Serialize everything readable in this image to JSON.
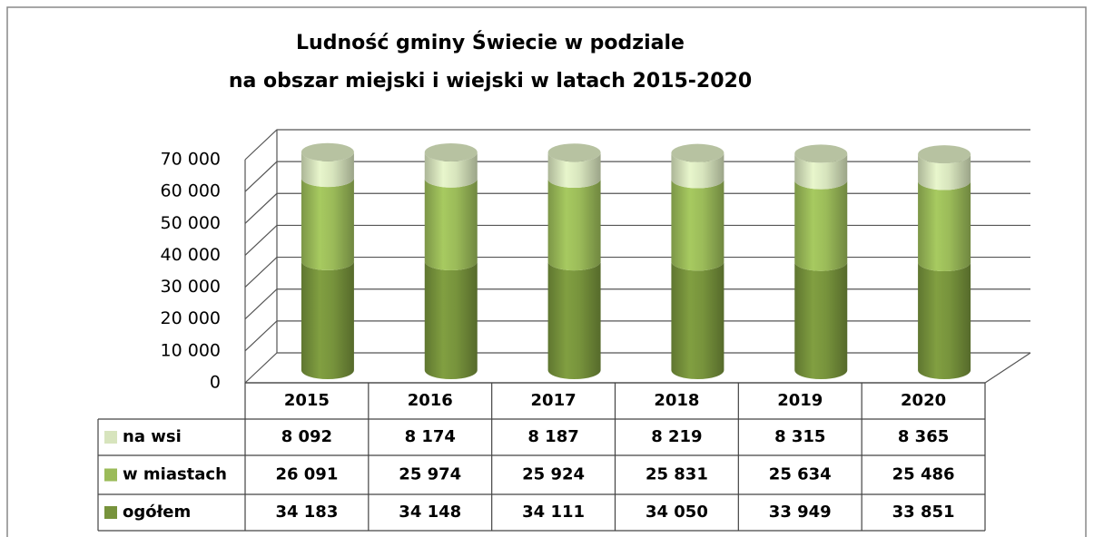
{
  "chart_data": {
    "type": "bar3d_stacked",
    "title": [
      "Ludność gminy Świecie w podziale",
      "na obszar miejski i wiejski w latach 2015-2020"
    ],
    "categories": [
      "2015",
      "2016",
      "2017",
      "2018",
      "2019",
      "2020"
    ],
    "series": [
      {
        "name": "ogółem",
        "color": "#77933c",
        "values": [
          34183,
          34148,
          34111,
          34050,
          33949,
          33851
        ],
        "value_labels": [
          "34 183",
          "34 148",
          "34 111",
          "34 050",
          "33 949",
          "33 851"
        ]
      },
      {
        "name": "w miastach",
        "color": "#9bbb59",
        "values": [
          26091,
          25974,
          25924,
          25831,
          25634,
          25486
        ],
        "value_labels": [
          "26 091",
          "25 974",
          "25 924",
          "25 831",
          "25 634",
          "25 486"
        ]
      },
      {
        "name": "na wsi",
        "color": "#d7e4bd",
        "values": [
          8092,
          8174,
          8187,
          8219,
          8315,
          8365
        ],
        "value_labels": [
          "8 092",
          "8 174",
          "8 187",
          "8 219",
          "8 315",
          "8 365"
        ]
      }
    ],
    "ylim": [
      0,
      70000
    ],
    "yticks": [
      0,
      {
        "value": 10000,
        "label": "10 000"
      },
      {
        "value": 20000,
        "label": "20 000"
      },
      {
        "value": 30000,
        "label": "30 000"
      },
      {
        "value": 40000,
        "label": "40 000"
      },
      {
        "value": 50000,
        "label": "50 000"
      },
      {
        "value": 60000,
        "label": "60 000"
      },
      {
        "value": 70000,
        "label": "70 000"
      }
    ],
    "grid": true
  }
}
